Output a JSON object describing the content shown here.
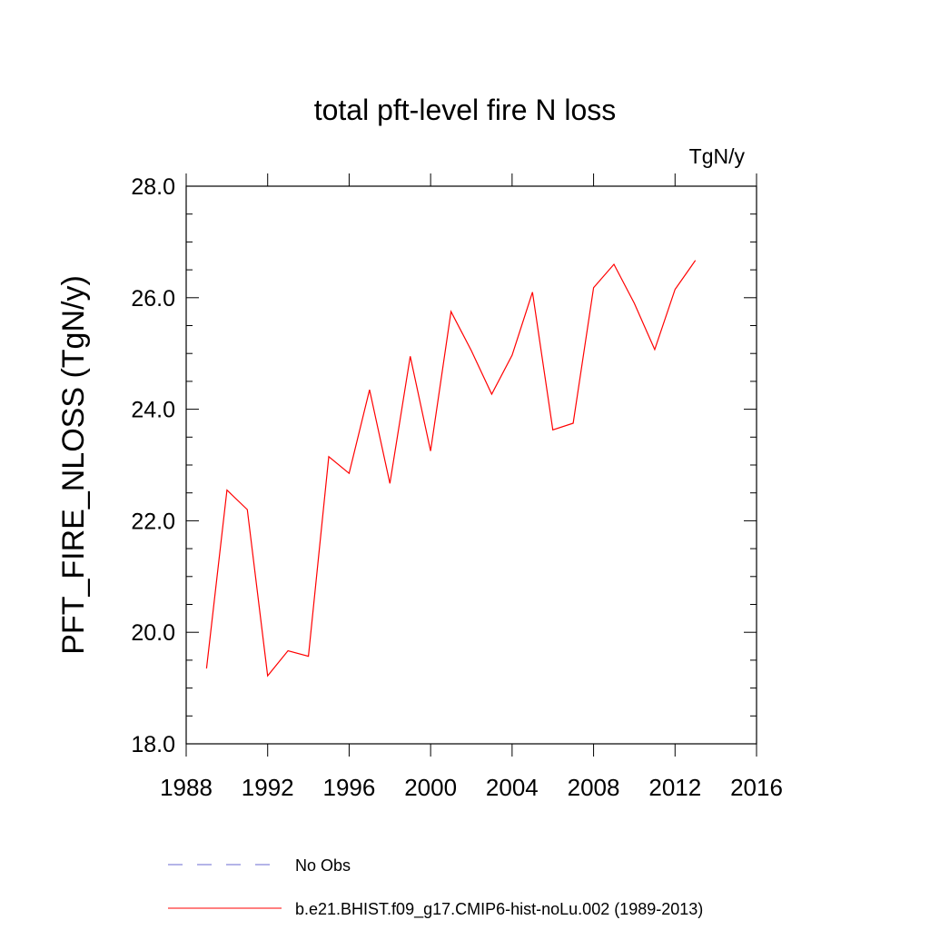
{
  "chart_data": {
    "type": "line",
    "title": "total pft-level fire N loss",
    "units": "TgN/y",
    "ylabel": "PFT_FIRE_NLOSS  (TgN/y)",
    "xlabel": "",
    "xlim": [
      1988,
      2016
    ],
    "ylim": [
      18.0,
      28.0
    ],
    "x_ticks": [
      1988,
      1992,
      1996,
      2000,
      2004,
      2008,
      2012,
      2016
    ],
    "x_tick_labels": [
      "1988",
      "1992",
      "1996",
      "2000",
      "2004",
      "2008",
      "2012",
      "2016"
    ],
    "y_ticks": [
      18.0,
      20.0,
      22.0,
      24.0,
      26.0,
      28.0
    ],
    "y_tick_labels": [
      "18.0",
      "20.0",
      "22.0",
      "24.0",
      "26.0",
      "28.0"
    ],
    "grid": false,
    "legend_position": "bottom",
    "series": [
      {
        "name": "No Obs",
        "color": "#6a6ad0",
        "style": "dashed",
        "x": [],
        "y": []
      },
      {
        "name": "b.e21.BHIST.f09_g17.CMIP6-hist-noLu.002 (1989-2013)",
        "color": "#ff0000",
        "style": "solid",
        "x": [
          1989,
          1990,
          1991,
          1992,
          1993,
          1994,
          1995,
          1996,
          1997,
          1998,
          1999,
          2000,
          2001,
          2002,
          2003,
          2004,
          2005,
          2006,
          2007,
          2008,
          2009,
          2010,
          2011,
          2012,
          2013
        ],
        "y": [
          19.35,
          22.55,
          22.2,
          19.22,
          19.67,
          19.57,
          23.15,
          22.85,
          24.35,
          22.67,
          24.95,
          23.25,
          25.75,
          25.05,
          24.27,
          24.97,
          26.1,
          23.63,
          23.75,
          26.18,
          26.6,
          25.9,
          25.07,
          26.15,
          26.67
        ]
      }
    ]
  }
}
